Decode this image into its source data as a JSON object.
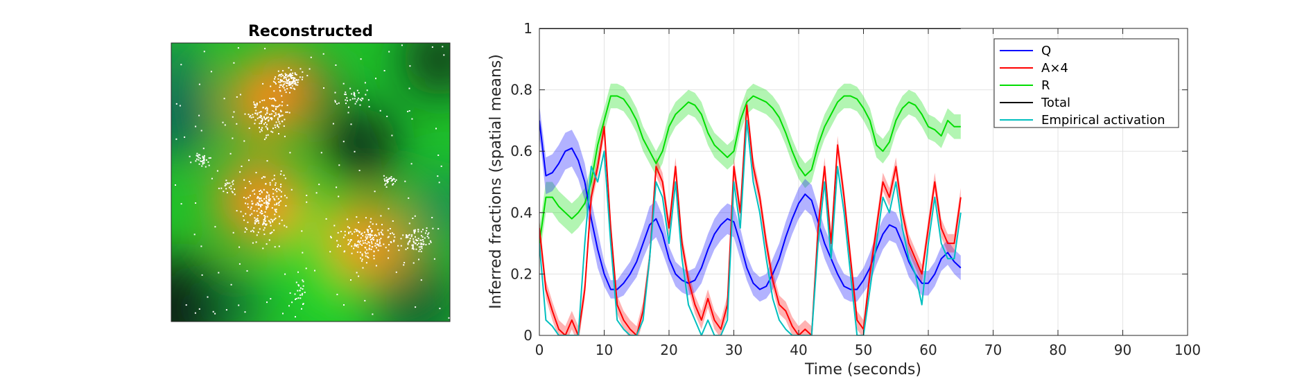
{
  "left_panel": {
    "title": "Reconstructed"
  },
  "chart_data": {
    "type": "line",
    "xlabel": "Time (seconds)",
    "ylabel": "Inferred fractions (spatial means)",
    "xlim": [
      0,
      100
    ],
    "ylim": [
      0,
      1
    ],
    "xticks": [
      "0",
      "10",
      "20",
      "30",
      "40",
      "50",
      "60",
      "70",
      "80",
      "90",
      "100"
    ],
    "yticks": [
      "0",
      "0.2",
      "0.4",
      "0.6",
      "0.8",
      "1"
    ],
    "grid": true,
    "legend_position": "top-right",
    "x": [
      0,
      1,
      2,
      3,
      4,
      5,
      6,
      7,
      8,
      9,
      10,
      11,
      12,
      13,
      14,
      15,
      16,
      17,
      18,
      19,
      20,
      21,
      22,
      23,
      24,
      25,
      26,
      27,
      28,
      29,
      30,
      31,
      32,
      33,
      34,
      35,
      36,
      37,
      38,
      39,
      40,
      41,
      42,
      43,
      44,
      45,
      46,
      47,
      48,
      49,
      50,
      51,
      52,
      53,
      54,
      55,
      56,
      57,
      58,
      59,
      60,
      61,
      62,
      63,
      64,
      65
    ],
    "series": [
      {
        "name": "Q",
        "color": "#0000ff",
        "values": [
          0.7,
          0.52,
          0.53,
          0.56,
          0.6,
          0.61,
          0.57,
          0.5,
          0.38,
          0.28,
          0.2,
          0.15,
          0.15,
          0.17,
          0.2,
          0.24,
          0.3,
          0.36,
          0.38,
          0.33,
          0.25,
          0.2,
          0.18,
          0.17,
          0.18,
          0.22,
          0.28,
          0.33,
          0.36,
          0.38,
          0.37,
          0.3,
          0.22,
          0.17,
          0.15,
          0.16,
          0.2,
          0.25,
          0.32,
          0.38,
          0.43,
          0.46,
          0.44,
          0.37,
          0.3,
          0.25,
          0.2,
          0.16,
          0.15,
          0.15,
          0.18,
          0.22,
          0.28,
          0.33,
          0.36,
          0.35,
          0.3,
          0.24,
          0.2,
          0.17,
          0.17,
          0.2,
          0.25,
          0.27,
          0.24,
          0.22
        ],
        "band": [
          0.05,
          0.06,
          0.06,
          0.06,
          0.06,
          0.06,
          0.06,
          0.06,
          0.06,
          0.06,
          0.04,
          0.03,
          0.03,
          0.04,
          0.04,
          0.05,
          0.05,
          0.06,
          0.06,
          0.06,
          0.04,
          0.04,
          0.04,
          0.04,
          0.04,
          0.05,
          0.05,
          0.05,
          0.05,
          0.05,
          0.05,
          0.05,
          0.04,
          0.04,
          0.04,
          0.04,
          0.05,
          0.05,
          0.05,
          0.05,
          0.05,
          0.05,
          0.05,
          0.05,
          0.05,
          0.05,
          0.04,
          0.04,
          0.04,
          0.04,
          0.04,
          0.05,
          0.05,
          0.05,
          0.05,
          0.05,
          0.05,
          0.05,
          0.04,
          0.04,
          0.04,
          0.04,
          0.04,
          0.04,
          0.04,
          0.04
        ]
      },
      {
        "name": "A×4",
        "color": "#ff0000",
        "values": [
          0.35,
          0.15,
          0.08,
          0.02,
          0.0,
          0.05,
          0.0,
          0.15,
          0.45,
          0.55,
          0.68,
          0.35,
          0.1,
          0.05,
          0.02,
          0.0,
          0.08,
          0.25,
          0.55,
          0.5,
          0.35,
          0.55,
          0.3,
          0.18,
          0.1,
          0.05,
          0.12,
          0.05,
          0.02,
          0.1,
          0.55,
          0.4,
          0.75,
          0.55,
          0.45,
          0.3,
          0.18,
          0.1,
          0.08,
          0.03,
          0.0,
          0.02,
          0.0,
          0.35,
          0.55,
          0.3,
          0.62,
          0.45,
          0.25,
          0.05,
          0.02,
          0.2,
          0.35,
          0.5,
          0.45,
          0.55,
          0.4,
          0.3,
          0.25,
          0.2,
          0.35,
          0.5,
          0.35,
          0.3,
          0.3,
          0.45
        ],
        "band": [
          0.03,
          0.03,
          0.03,
          0.03,
          0.03,
          0.03,
          0.03,
          0.03,
          0.03,
          0.03,
          0.03,
          0.03,
          0.03,
          0.03,
          0.03,
          0.03,
          0.03,
          0.03,
          0.03,
          0.03,
          0.03,
          0.03,
          0.03,
          0.03,
          0.03,
          0.03,
          0.03,
          0.03,
          0.03,
          0.03,
          0.03,
          0.03,
          0.03,
          0.03,
          0.03,
          0.03,
          0.03,
          0.03,
          0.03,
          0.03,
          0.03,
          0.03,
          0.03,
          0.03,
          0.03,
          0.03,
          0.03,
          0.03,
          0.03,
          0.03,
          0.03,
          0.03,
          0.03,
          0.03,
          0.03,
          0.03,
          0.03,
          0.03,
          0.03,
          0.03,
          0.03,
          0.03,
          0.03,
          0.03,
          0.03,
          0.03
        ]
      },
      {
        "name": "R",
        "color": "#00dd00",
        "values": [
          0.3,
          0.45,
          0.45,
          0.42,
          0.4,
          0.38,
          0.4,
          0.43,
          0.5,
          0.62,
          0.7,
          0.78,
          0.78,
          0.77,
          0.74,
          0.7,
          0.64,
          0.6,
          0.56,
          0.6,
          0.68,
          0.72,
          0.74,
          0.76,
          0.75,
          0.72,
          0.66,
          0.62,
          0.6,
          0.58,
          0.6,
          0.7,
          0.76,
          0.78,
          0.77,
          0.76,
          0.74,
          0.71,
          0.66,
          0.6,
          0.55,
          0.52,
          0.54,
          0.62,
          0.68,
          0.72,
          0.76,
          0.78,
          0.78,
          0.77,
          0.74,
          0.7,
          0.62,
          0.6,
          0.63,
          0.7,
          0.74,
          0.76,
          0.75,
          0.72,
          0.68,
          0.67,
          0.65,
          0.7,
          0.68,
          0.68
        ],
        "band": [
          0.05,
          0.05,
          0.05,
          0.05,
          0.05,
          0.05,
          0.05,
          0.05,
          0.05,
          0.05,
          0.04,
          0.04,
          0.04,
          0.04,
          0.04,
          0.04,
          0.04,
          0.04,
          0.04,
          0.04,
          0.04,
          0.04,
          0.04,
          0.04,
          0.04,
          0.04,
          0.04,
          0.04,
          0.04,
          0.04,
          0.04,
          0.04,
          0.04,
          0.04,
          0.04,
          0.04,
          0.04,
          0.04,
          0.04,
          0.04,
          0.04,
          0.04,
          0.04,
          0.04,
          0.04,
          0.04,
          0.04,
          0.04,
          0.04,
          0.04,
          0.04,
          0.04,
          0.04,
          0.04,
          0.04,
          0.04,
          0.04,
          0.04,
          0.04,
          0.04,
          0.04,
          0.04,
          0.04,
          0.04,
          0.04,
          0.04
        ]
      },
      {
        "name": "Total",
        "color": "#000000",
        "values": [
          1,
          1,
          1,
          1,
          1,
          1,
          1,
          1,
          1,
          1,
          1,
          1,
          1,
          1,
          1,
          1,
          1,
          1,
          1,
          1,
          1,
          1,
          1,
          1,
          1,
          1,
          1,
          1,
          1,
          1,
          1,
          1,
          1,
          1,
          1,
          1,
          1,
          1,
          1,
          1,
          1,
          1,
          1,
          1,
          1,
          1,
          1,
          1,
          1,
          1,
          1,
          1,
          1,
          1,
          1,
          1,
          1,
          1,
          1,
          1,
          1,
          1,
          1,
          1,
          1,
          1
        ]
      },
      {
        "name": "Empirical activation",
        "color": "#00bfbf",
        "values": [
          0.3,
          0.05,
          0.03,
          0.0,
          0.0,
          0.0,
          0.0,
          0.3,
          0.55,
          0.5,
          0.6,
          0.3,
          0.05,
          0.02,
          0.0,
          0.0,
          0.05,
          0.25,
          0.5,
          0.45,
          0.3,
          0.5,
          0.25,
          0.1,
          0.05,
          0.0,
          0.05,
          0.0,
          0.0,
          0.05,
          0.5,
          0.35,
          0.7,
          0.5,
          0.4,
          0.25,
          0.12,
          0.05,
          0.02,
          0.0,
          0.0,
          0.0,
          0.0,
          0.3,
          0.5,
          0.25,
          0.55,
          0.4,
          0.2,
          0.0,
          0.0,
          0.15,
          0.3,
          0.45,
          0.4,
          0.5,
          0.35,
          0.25,
          0.2,
          0.1,
          0.3,
          0.45,
          0.3,
          0.25,
          0.25,
          0.4
        ]
      }
    ]
  }
}
